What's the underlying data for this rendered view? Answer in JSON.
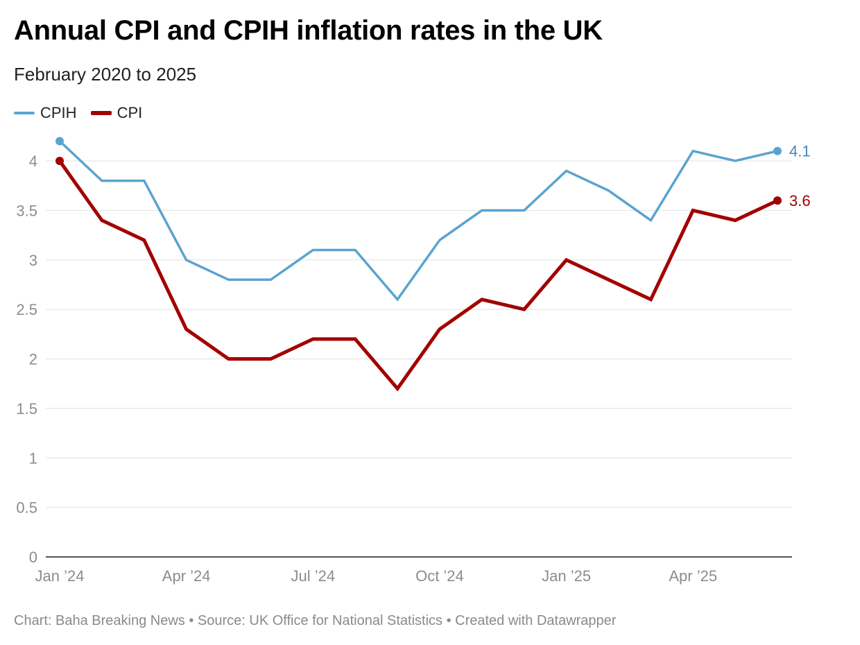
{
  "title": "Annual CPI and CPIH inflation rates in the UK",
  "subtitle": "February 2020 to 2025",
  "footer": "Chart: Baha Breaking News • Source: UK Office for National Statistics • Created with Datawrapper",
  "chart_data": {
    "type": "line",
    "title": "Annual CPI and CPIH inflation rates in the UK",
    "subtitle": "February 2020 to 2025",
    "x": [
      "Jan 2024",
      "Feb 2024",
      "Mar 2024",
      "Apr 2024",
      "May 2024",
      "Jun 2024",
      "Jul 2024",
      "Aug 2024",
      "Sep 2024",
      "Oct 2024",
      "Nov 2024",
      "Dec 2024",
      "Jan 2025",
      "Feb 2025",
      "Mar 2025",
      "Apr 2025",
      "May 2025",
      "Jun 2025"
    ],
    "x_ticks": [
      {
        "index": 0,
        "label": "Jan ’24"
      },
      {
        "index": 3,
        "label": "Apr ’24"
      },
      {
        "index": 6,
        "label": "Jul ’24"
      },
      {
        "index": 9,
        "label": "Oct ’24"
      },
      {
        "index": 12,
        "label": "Jan ’25"
      },
      {
        "index": 15,
        "label": "Apr ’25"
      }
    ],
    "y_ticks": [
      {
        "value": 0,
        "label": "0"
      },
      {
        "value": 0.5,
        "label": "0.5"
      },
      {
        "value": 1,
        "label": "1"
      },
      {
        "value": 1.5,
        "label": "1.5"
      },
      {
        "value": 2,
        "label": "2"
      },
      {
        "value": 2.5,
        "label": "2.5"
      },
      {
        "value": 3,
        "label": "3"
      },
      {
        "value": 3.5,
        "label": "3.5"
      },
      {
        "value": 4,
        "label": "4"
      }
    ],
    "ylim": [
      0,
      4.25
    ],
    "grid": true,
    "legend_position": "top-left",
    "series": [
      {
        "name": "CPIH",
        "color": "#5ba3cf",
        "values": [
          4.2,
          3.8,
          3.8,
          3.0,
          2.8,
          2.8,
          3.1,
          3.1,
          2.6,
          3.2,
          3.5,
          3.5,
          3.9,
          3.7,
          3.4,
          4.1,
          4.0,
          4.1
        ],
        "end_label": "4.1"
      },
      {
        "name": "CPI",
        "color": "#a30000",
        "values": [
          4.0,
          3.4,
          3.2,
          2.3,
          2.0,
          2.0,
          2.2,
          2.2,
          1.7,
          2.3,
          2.6,
          2.5,
          3.0,
          2.8,
          2.6,
          3.5,
          3.4,
          3.6
        ],
        "end_label": "3.6"
      }
    ]
  }
}
